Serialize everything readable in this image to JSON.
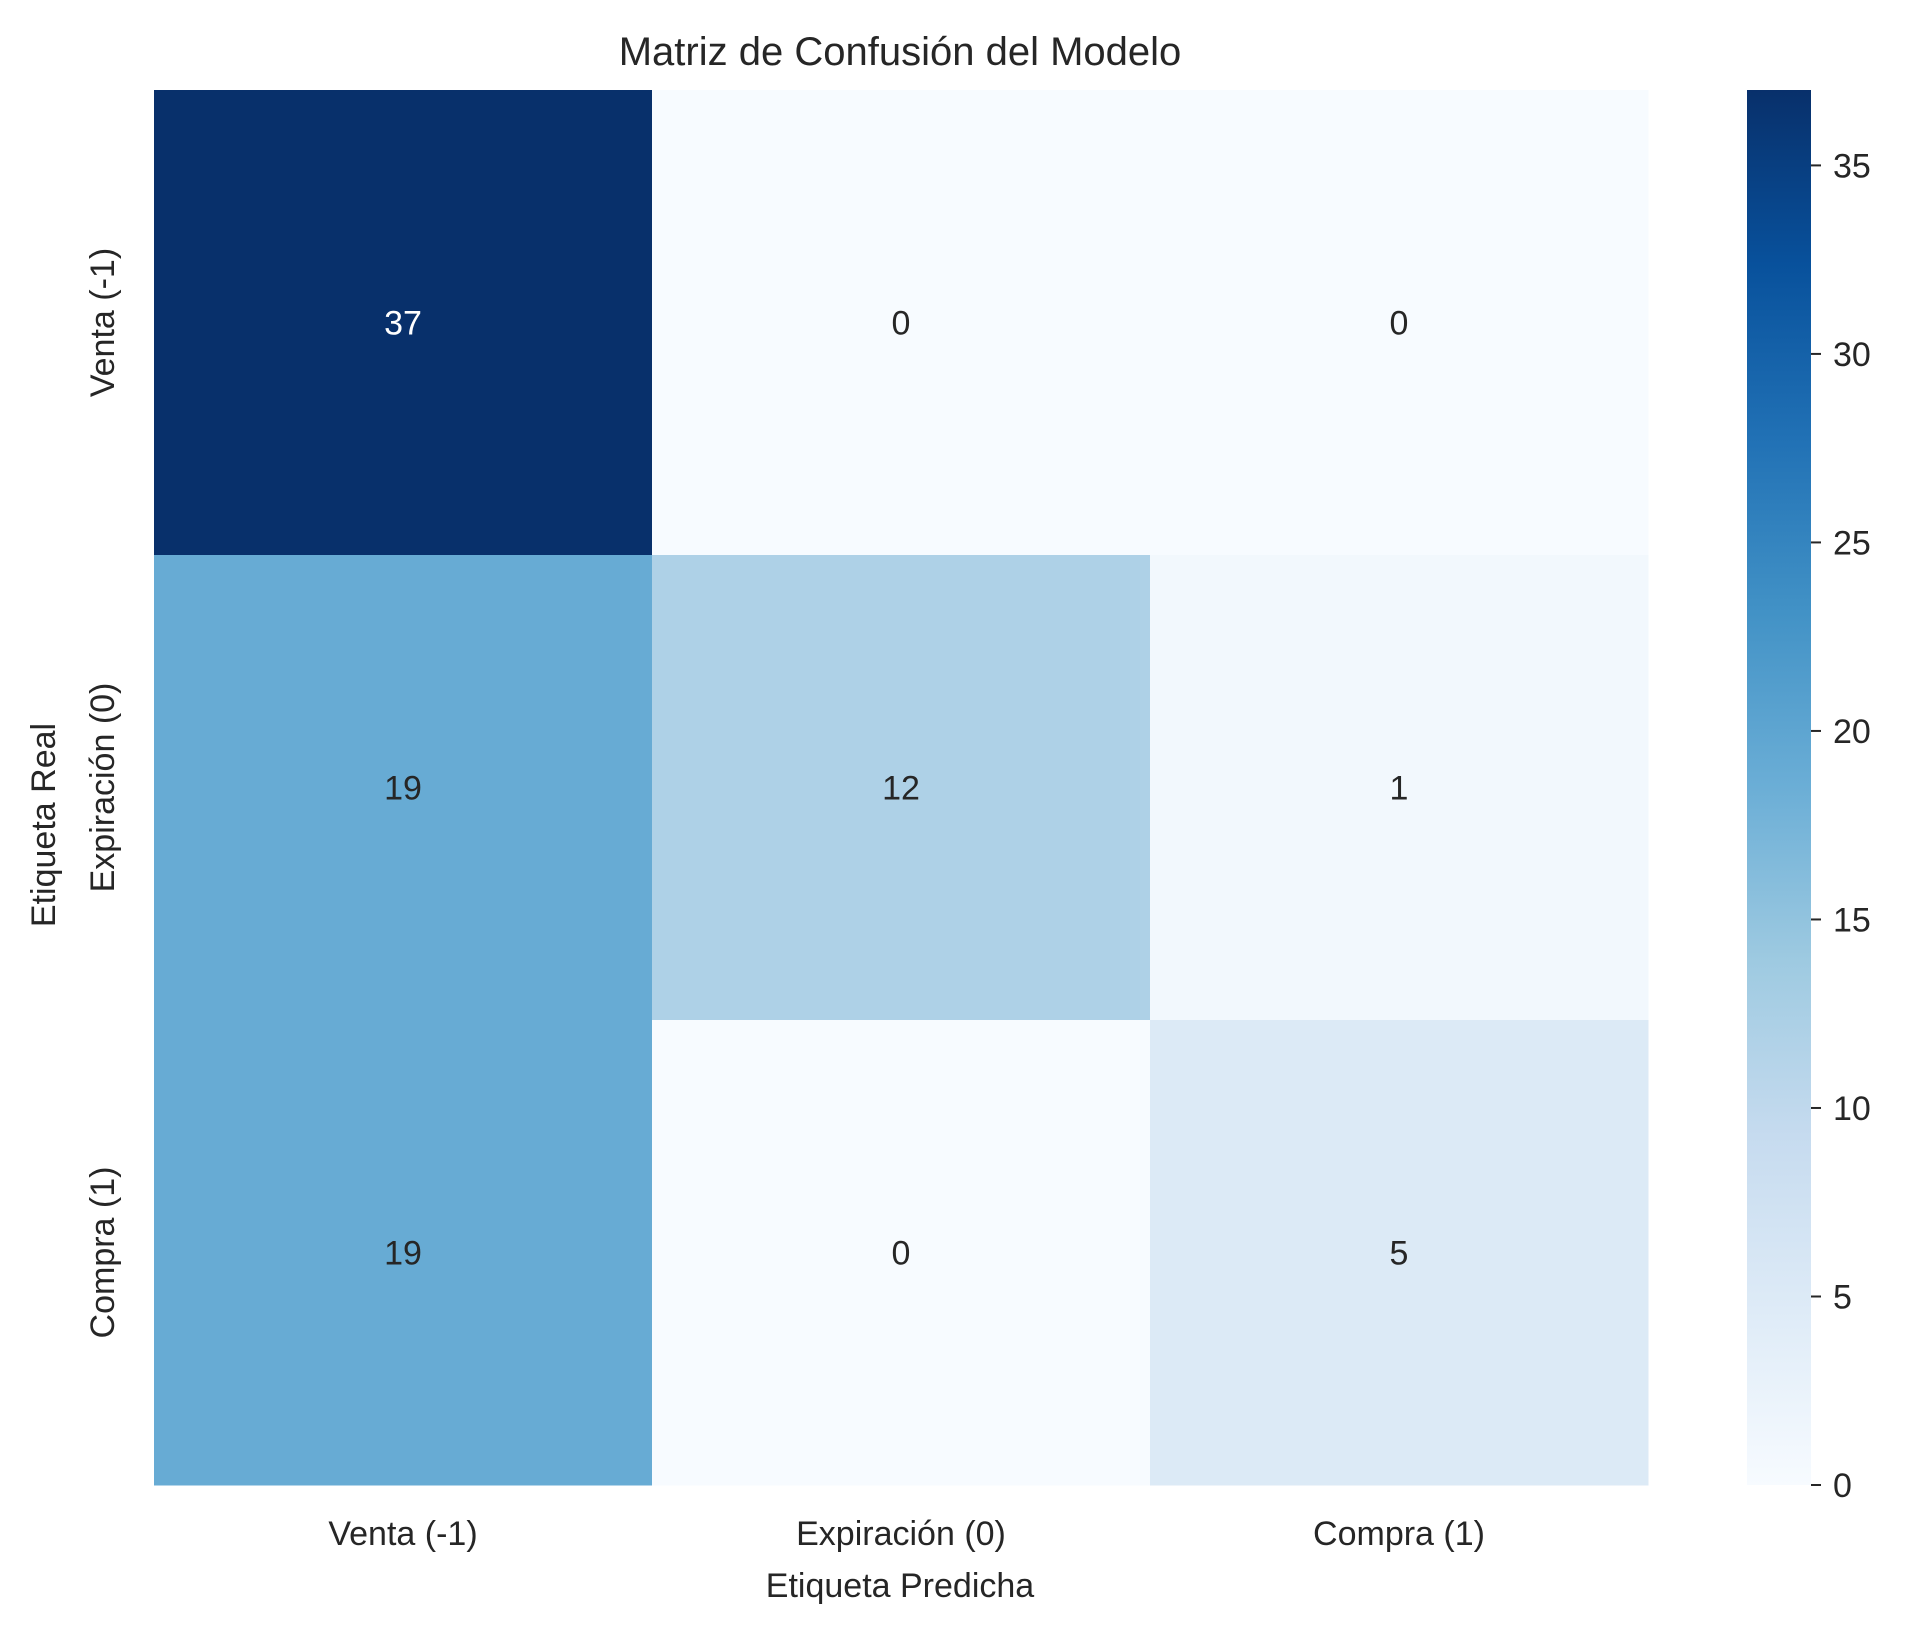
{
  "chart_data": {
    "type": "heatmap",
    "title": "Matriz de Confusión del Modelo",
    "xlabel": "Etiqueta Predicha",
    "ylabel": "Etiqueta Real",
    "x_categories": [
      "Venta (-1)",
      "Expiración (0)",
      "Compra (1)"
    ],
    "y_categories": [
      "Venta (-1)",
      "Expiración (0)",
      "Compra (1)"
    ],
    "values": [
      [
        37,
        0,
        0
      ],
      [
        19,
        12,
        1
      ],
      [
        19,
        0,
        5
      ]
    ],
    "colorbar": {
      "min": 0,
      "max": 37,
      "ticks": [
        0,
        5,
        10,
        15,
        20,
        25,
        30,
        35
      ]
    },
    "colormap": "Blues",
    "colormap_stops": [
      "#f7fbff",
      "#deebf7",
      "#c6dbef",
      "#9ecae1",
      "#6baed6",
      "#4292c6",
      "#2171b5",
      "#08519c",
      "#08306b"
    ]
  }
}
